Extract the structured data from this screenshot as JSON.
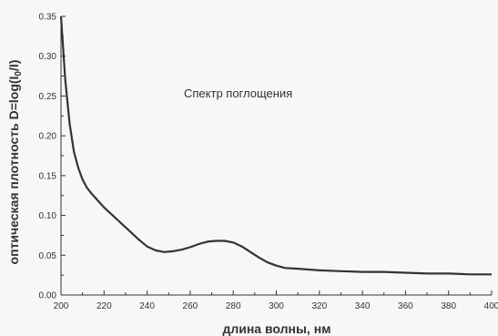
{
  "chart_data": {
    "type": "line",
    "title": "",
    "annotation": "Спектр поглощения",
    "xlabel": "длина волны, нм",
    "ylabel": "оптическая плотность D=log(I",
    "ylabel_sub": "0",
    "ylabel_end": "/I)",
    "xlim": [
      200,
      400
    ],
    "ylim": [
      0.0,
      0.35
    ],
    "x_ticks": [
      "200",
      "220",
      "240",
      "260",
      "280",
      "300",
      "320",
      "340",
      "360",
      "380",
      "400"
    ],
    "y_ticks": [
      "0.00",
      "0.05",
      "0.10",
      "0.15",
      "0.20",
      "0.25",
      "0.30",
      "0.35"
    ],
    "grid": false,
    "legend": "none",
    "colors": {
      "line": "#333333",
      "axis": "#333333"
    },
    "series": [
      {
        "x": [
          200,
          202,
          204,
          206,
          208,
          210,
          212,
          214,
          216,
          218,
          220,
          224,
          228,
          232,
          236,
          240,
          244,
          248,
          252,
          256,
          260,
          264,
          268,
          272,
          276,
          280,
          284,
          288,
          292,
          296,
          300,
          304,
          310,
          320,
          330,
          340,
          350,
          360,
          370,
          380,
          390,
          400
        ],
        "y": [
          0.35,
          0.27,
          0.215,
          0.18,
          0.16,
          0.145,
          0.135,
          0.128,
          0.122,
          0.116,
          0.11,
          0.1,
          0.09,
          0.08,
          0.07,
          0.061,
          0.056,
          0.054,
          0.055,
          0.057,
          0.06,
          0.064,
          0.067,
          0.068,
          0.068,
          0.066,
          0.061,
          0.054,
          0.047,
          0.041,
          0.037,
          0.034,
          0.033,
          0.031,
          0.03,
          0.029,
          0.029,
          0.028,
          0.027,
          0.027,
          0.026,
          0.026
        ]
      }
    ]
  }
}
